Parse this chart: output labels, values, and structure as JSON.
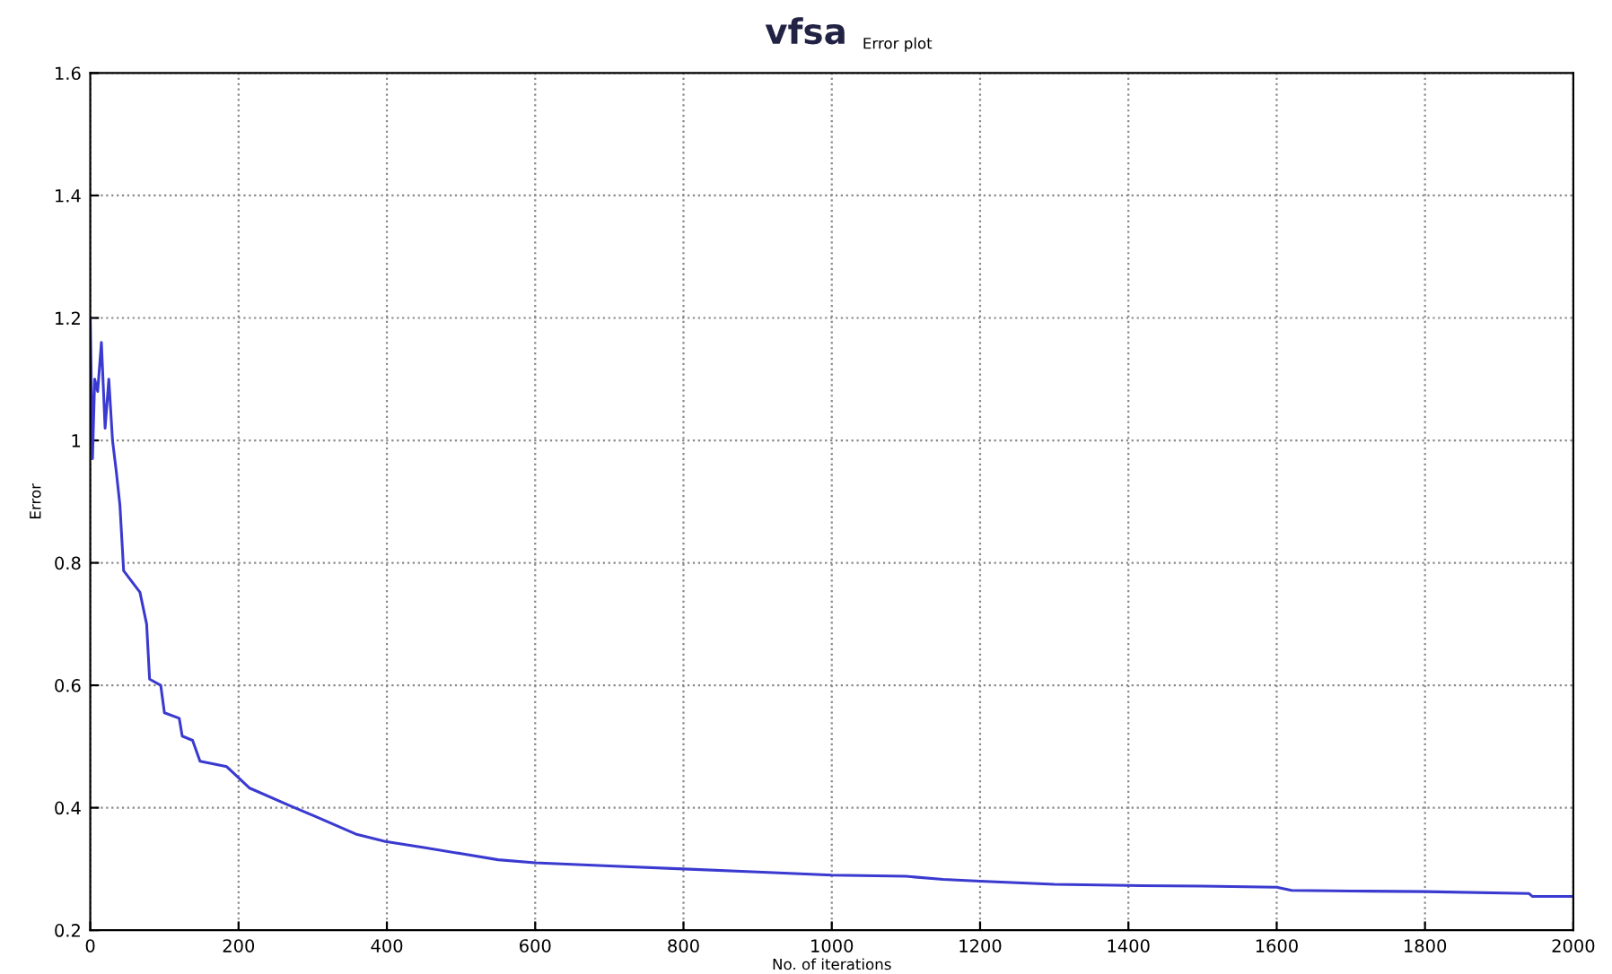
{
  "chart_data": {
    "type": "line",
    "title": "vfsa",
    "subtitle": "Error plot",
    "xlabel": "No. of iterations",
    "ylabel": "Error",
    "series": [
      {
        "color": "#3a3ad0",
        "x": [
          0,
          3,
          6,
          10,
          15,
          20,
          25,
          30,
          35,
          40,
          45,
          67,
          76,
          80,
          95,
          100,
          120,
          124,
          138,
          148,
          184,
          215,
          270,
          303,
          358,
          398,
          450,
          500,
          550,
          600,
          700,
          800,
          900,
          1000,
          1100,
          1150,
          1200,
          1300,
          1400,
          1500,
          1600,
          1620,
          1700,
          1800,
          1940,
          1945,
          2000
        ],
        "values": [
          1.2,
          0.97,
          1.1,
          1.08,
          1.16,
          1.02,
          1.1,
          1.0,
          0.95,
          0.894,
          0.787,
          0.752,
          0.7,
          0.61,
          0.6,
          0.555,
          0.546,
          0.517,
          0.51,
          0.476,
          0.467,
          0.432,
          0.403,
          0.386,
          0.357,
          0.345,
          0.335,
          0.325,
          0.315,
          0.31,
          0.305,
          0.3,
          0.295,
          0.29,
          0.288,
          0.283,
          0.28,
          0.275,
          0.273,
          0.272,
          0.27,
          0.265,
          0.264,
          0.263,
          0.26,
          0.255,
          0.255
        ]
      }
    ],
    "xlim": [
      0,
      2000
    ],
    "ylim": [
      0.2,
      1.6
    ],
    "xticks": [
      0,
      200,
      400,
      600,
      800,
      1000,
      1200,
      1400,
      1600,
      1800,
      2000
    ],
    "yticks": [
      0.2,
      0.4,
      0.6,
      0.8,
      1,
      1.2,
      1.4,
      1.6
    ],
    "grid": true,
    "line_style": "solid"
  }
}
